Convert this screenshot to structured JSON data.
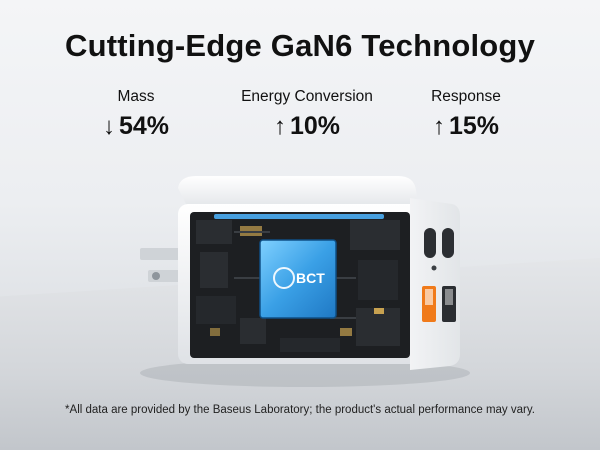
{
  "headline": "Cutting-Edge GaN6 Technology",
  "stats": [
    {
      "label": "Mass",
      "arrow": "down-arrow-icon",
      "arrow_glyph": "↓",
      "value": "54%"
    },
    {
      "label": "Energy Conversion",
      "arrow": "up-arrow-icon",
      "arrow_glyph": "↑",
      "value": "10%"
    },
    {
      "label": "Response",
      "arrow": "up-arrow-icon",
      "arrow_glyph": "↑",
      "value": "15%"
    }
  ],
  "chip_label": "BCT",
  "footnote": "*All data are provided by the Baseus Laboratory; the product's actual performance may vary.",
  "colors": {
    "chip": "#3aa0e6",
    "usb_a_accent": "#f07a1a",
    "board": "#1d1f22",
    "shell": "#f5f6f7"
  }
}
